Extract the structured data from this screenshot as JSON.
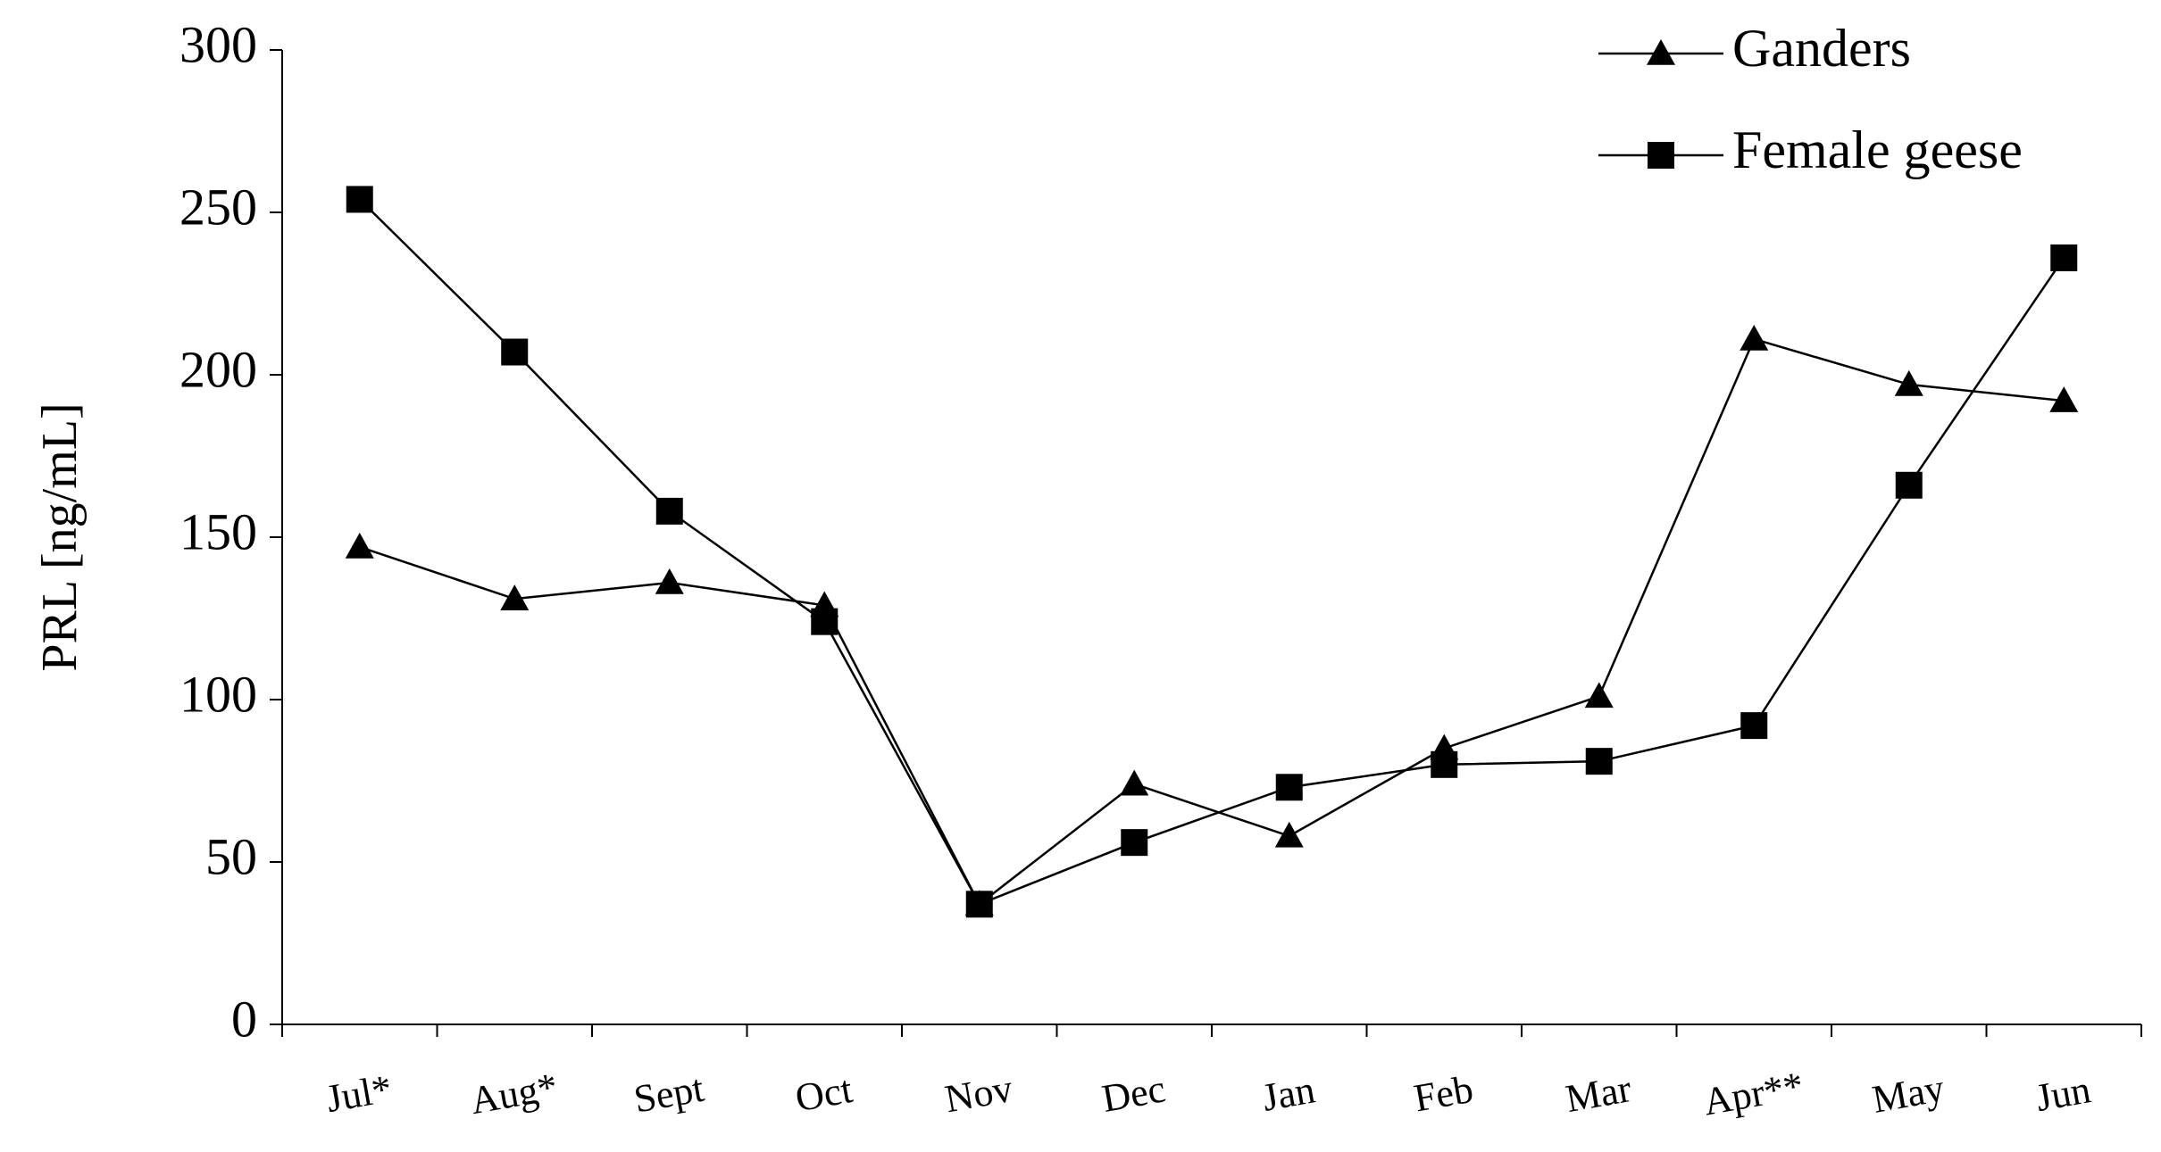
{
  "chart_data": {
    "type": "line",
    "y_label": "PRL [ng/mL]",
    "categories": [
      "Jul*",
      "Aug*",
      "Sept",
      "Oct",
      "Nov",
      "Dec",
      "Jan",
      "Feb",
      "Mar",
      "Apr**",
      "May",
      "Jun"
    ],
    "series": [
      {
        "name": "Ganders",
        "color": "#000000",
        "marker": "triangle",
        "values": [
          147,
          131,
          136,
          129,
          37,
          74,
          58,
          85,
          101,
          211,
          197,
          192
        ]
      },
      {
        "name": "Female geese",
        "color": "#000000",
        "marker": "square",
        "values": [
          254,
          207,
          158,
          124,
          37,
          56,
          73,
          80,
          81,
          92,
          166,
          236
        ]
      }
    ],
    "ylim": [
      0,
      300
    ],
    "yticks": [
      0,
      50,
      100,
      150,
      200,
      250,
      300
    ],
    "grid": false,
    "legend": "upper right"
  }
}
